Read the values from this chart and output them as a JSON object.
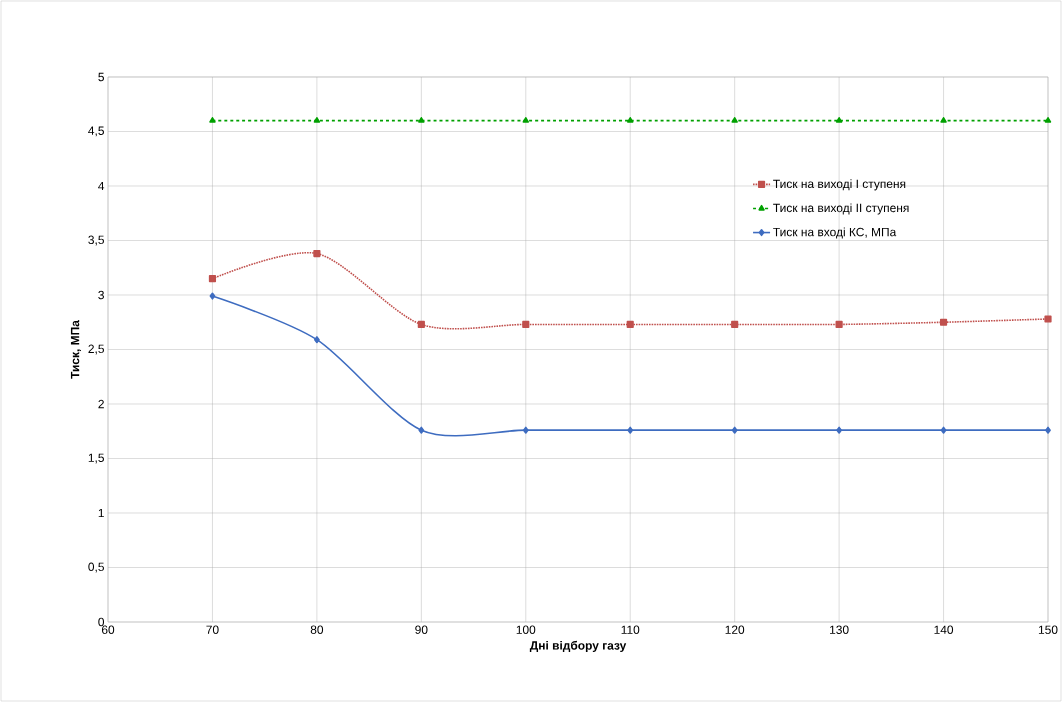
{
  "chart_data": {
    "type": "line",
    "xlabel": "Дні відбору газу",
    "ylabel": "Тиск, МПа",
    "x": [
      70,
      80,
      90,
      100,
      110,
      120,
      130,
      140,
      150
    ],
    "series": [
      {
        "name": "Тиск на виході I ступеня",
        "color": "#c0504d",
        "marker": "square",
        "line_style": "dotted",
        "values": [
          3.15,
          3.38,
          2.73,
          2.73,
          2.73,
          2.73,
          2.73,
          2.75,
          2.78
        ]
      },
      {
        "name": "Тиск на виході II ступеня",
        "color": "#00a000",
        "marker": "triangle",
        "line_style": "dashed",
        "values": [
          4.6,
          4.6,
          4.6,
          4.6,
          4.6,
          4.6,
          4.6,
          4.6,
          4.6
        ]
      },
      {
        "name": "Тиск на вході КС, МПа",
        "color": "#3e6cc0",
        "marker": "diamond",
        "line_style": "solid",
        "values": [
          2.99,
          2.59,
          1.76,
          1.76,
          1.76,
          1.76,
          1.76,
          1.76,
          1.76
        ]
      }
    ],
    "xlim": [
      60,
      150
    ],
    "xticks": [
      60,
      70,
      80,
      90,
      100,
      110,
      120,
      130,
      140,
      150
    ],
    "ylim": [
      0,
      5
    ],
    "yticks": [
      0,
      {
        "value": 0.5,
        "label": "0,5"
      },
      1,
      {
        "value": 1.5,
        "label": "1,5"
      },
      2,
      {
        "value": 2.5,
        "label": "2,5"
      },
      3,
      {
        "value": 3.5,
        "label": "3,5"
      },
      4,
      {
        "value": 4.5,
        "label": "4,5"
      },
      5
    ],
    "grid": true,
    "legend": "right"
  }
}
